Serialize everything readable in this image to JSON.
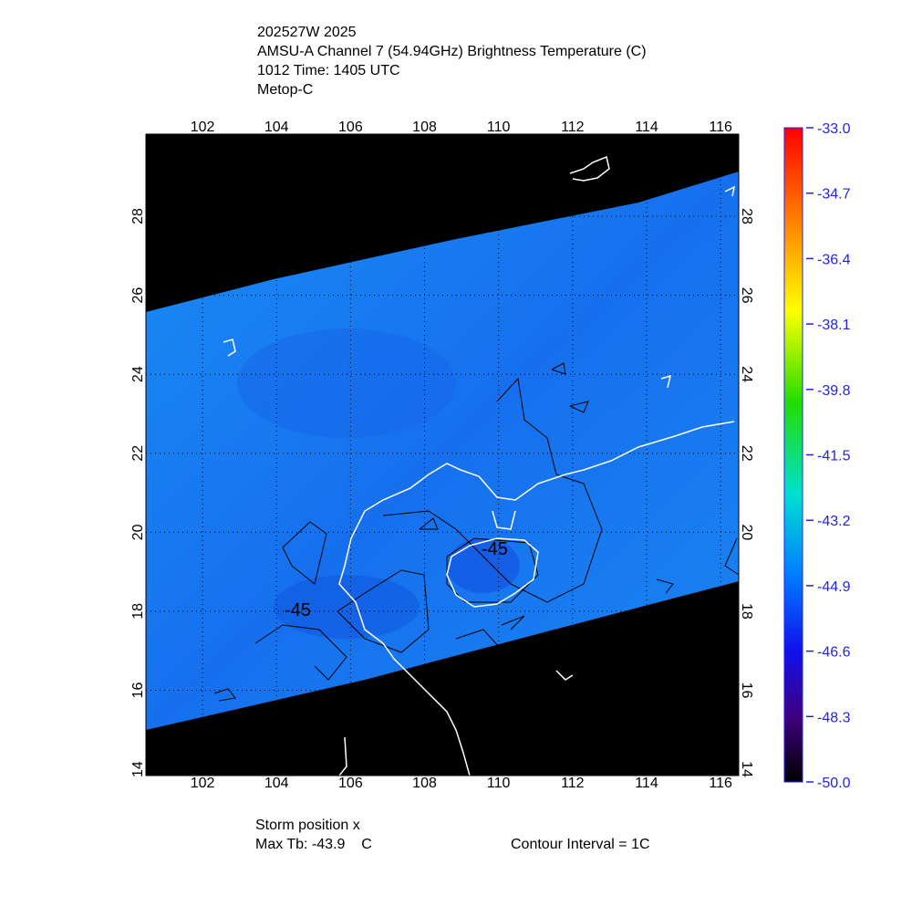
{
  "header": {
    "lines": [
      "202527W 2025",
      "AMSU-A Channel 7 (54.94GHz) Brightness Temperature (C)",
      "1012 Time: 1405 UTC",
      "Metop-C"
    ]
  },
  "map": {
    "xlim": [
      100.47,
      116.49
    ],
    "ylim": [
      13.84,
      30.08
    ],
    "xticks": [
      102,
      104,
      106,
      108,
      110,
      112,
      114,
      116
    ],
    "yticks": [
      14,
      16,
      18,
      20,
      22,
      24,
      26,
      28
    ],
    "grid": true,
    "contour_labels": [
      "-45",
      "-45"
    ]
  },
  "colorbar": {
    "range": [
      -50,
      -33
    ],
    "ticks": [
      {
        "value": -33,
        "label": "-33.0"
      },
      {
        "value": -34.7,
        "label": "-34.7"
      },
      {
        "value": -36.4,
        "label": "-36.4"
      },
      {
        "value": -38.1,
        "label": "-38.1"
      },
      {
        "value": -39.8,
        "label": "-39.8"
      },
      {
        "value": -41.5,
        "label": "-41.5"
      },
      {
        "value": -43.2,
        "label": "-43.2"
      },
      {
        "value": -44.9,
        "label": "-44.9"
      },
      {
        "value": -46.6,
        "label": "-46.6"
      },
      {
        "value": -48.3,
        "label": "-48.3"
      },
      {
        "value": -50,
        "label": "-50.0"
      }
    ]
  },
  "footer": {
    "storm": "Storm position x",
    "max_tb": "Max Tb: -43.9    C",
    "interval": "Contour Interval = 1C"
  }
}
